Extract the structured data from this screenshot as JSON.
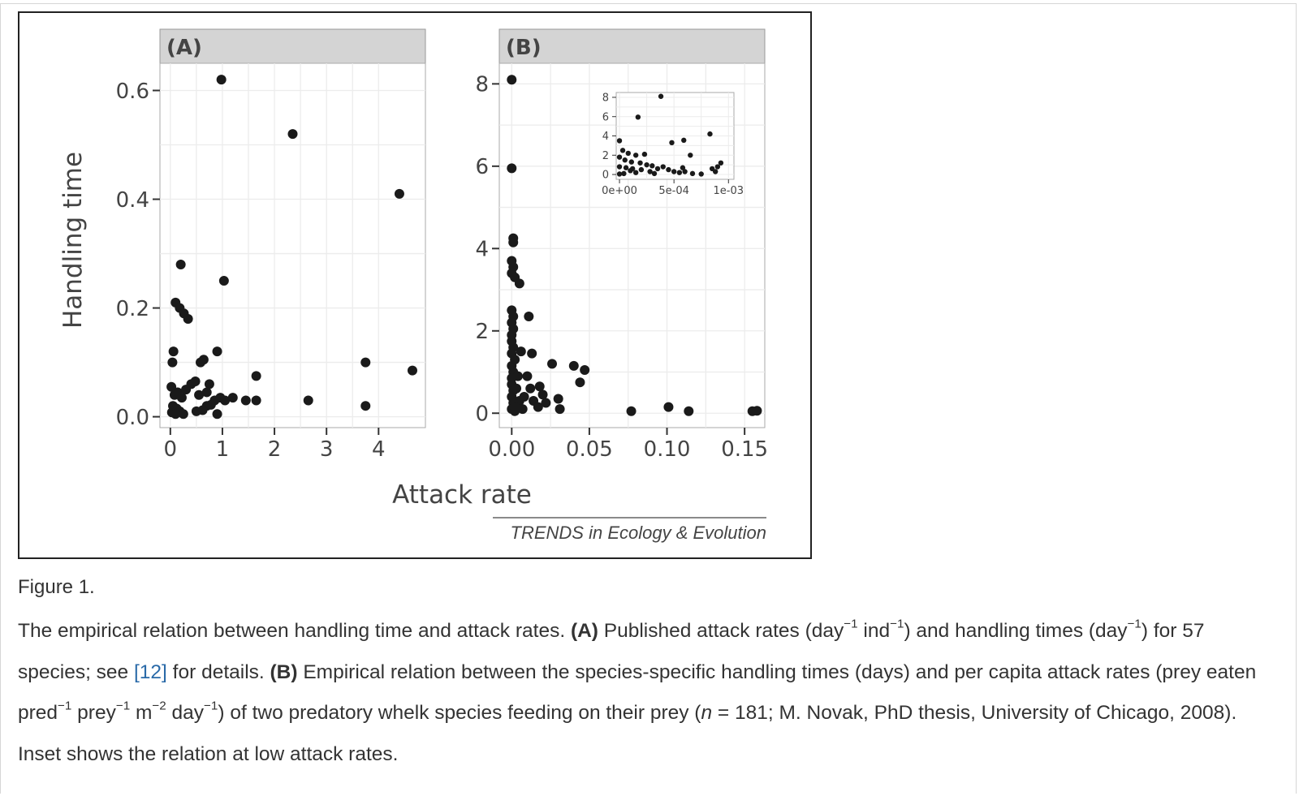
{
  "figure": {
    "label": "Figure 1.",
    "source": "TRENDS in Ecology & Evolution",
    "caption": {
      "intro": "The empirical relation between handling time and attack rates. ",
      "a_tag": "(A)",
      "a_text1": " Published attack rates (day",
      "sup1": "−1",
      "a_text2": " ind",
      "sup2": "−1",
      "a_text3": ") and handling times (day",
      "sup3": "−1",
      "a_text4": ") for 57 species; see ",
      "ref": "[12]",
      "a_text5": " for details. ",
      "b_tag": "(B)",
      "b_text1": " Empirical relation between the species-specific handling times (days) and per capita attack rates (prey eaten pred",
      "sup4": "−1",
      "b_text2": " prey",
      "sup5": "−1",
      "b_text3": " m",
      "sup6": "−2",
      "b_text4": " day",
      "sup7": "−1",
      "b_text5": ") of two predatory whelk species feeding on their prey (",
      "n_var": "n",
      "b_text6": " = 181; M. Novak, PhD thesis, University of Chicago, 2008). Inset shows the relation at low attack rates."
    }
  },
  "chart_data": [
    {
      "type": "scatter",
      "panel": "(A)",
      "xlabel": "Attack rate",
      "ylabel": "Handling time",
      "xlim": [
        -0.2,
        4.9
      ],
      "ylim": [
        -0.02,
        0.65
      ],
      "xticks": [
        0,
        1,
        2,
        3,
        4
      ],
      "xtick_labels": [
        "0",
        "1",
        "2",
        "3",
        "4"
      ],
      "yticks": [
        0,
        0.2,
        0.4,
        0.6
      ],
      "ytick_labels": [
        "0.0",
        "0.2",
        "0.4",
        "0.6"
      ],
      "points": [
        [
          0.98,
          0.62
        ],
        [
          2.35,
          0.52
        ],
        [
          4.4,
          0.41
        ],
        [
          0.2,
          0.28
        ],
        [
          1.03,
          0.25
        ],
        [
          0.1,
          0.21
        ],
        [
          0.18,
          0.2
        ],
        [
          0.26,
          0.19
        ],
        [
          0.34,
          0.18
        ],
        [
          0.04,
          0.1
        ],
        [
          0.06,
          0.12
        ],
        [
          0.58,
          0.1
        ],
        [
          0.64,
          0.105
        ],
        [
          0.9,
          0.12
        ],
        [
          3.75,
          0.1
        ],
        [
          4.65,
          0.085
        ],
        [
          1.65,
          0.075
        ],
        [
          0.02,
          0.055
        ],
        [
          0.4,
          0.06
        ],
        [
          0.48,
          0.065
        ],
        [
          0.75,
          0.06
        ],
        [
          0.08,
          0.04
        ],
        [
          0.14,
          0.045
        ],
        [
          0.22,
          0.035
        ],
        [
          0.3,
          0.05
        ],
        [
          0.55,
          0.04
        ],
        [
          0.7,
          0.045
        ],
        [
          0.85,
          0.03
        ],
        [
          0.96,
          0.035
        ],
        [
          1.05,
          0.03
        ],
        [
          1.2,
          0.035
        ],
        [
          1.45,
          0.03
        ],
        [
          1.65,
          0.03
        ],
        [
          2.65,
          0.03
        ],
        [
          0.05,
          0.02
        ],
        [
          0.12,
          0.015
        ],
        [
          0.18,
          0.01
        ],
        [
          0.25,
          0.005
        ],
        [
          0.5,
          0.01
        ],
        [
          0.7,
          0.02
        ],
        [
          0.9,
          0.005
        ],
        [
          3.75,
          0.02
        ],
        [
          0.03,
          0.008
        ],
        [
          0.1,
          0.005
        ],
        [
          0.62,
          0.012
        ],
        [
          0.78,
          0.022
        ]
      ]
    },
    {
      "type": "scatter",
      "panel": "(B)",
      "xlabel": "Attack rate",
      "ylabel": "Handling time",
      "xlim": [
        -0.008,
        0.163
      ],
      "ylim": [
        -0.35,
        8.5
      ],
      "xticks": [
        0,
        0.05,
        0.1,
        0.15
      ],
      "xtick_labels": [
        "0.00",
        "0.05",
        "0.10",
        "0.15"
      ],
      "yticks": [
        0,
        2,
        4,
        6,
        8
      ],
      "ytick_labels": [
        "0",
        "2",
        "4",
        "6",
        "8"
      ],
      "points": [
        [
          0.0,
          8.1
        ],
        [
          0.0,
          5.95
        ],
        [
          0.001,
          4.25
        ],
        [
          0.001,
          4.15
        ],
        [
          0.0,
          3.7
        ],
        [
          0.001,
          3.55
        ],
        [
          0.0,
          3.4
        ],
        [
          0.002,
          3.3
        ],
        [
          0.005,
          3.15
        ],
        [
          0.0,
          2.5
        ],
        [
          0.001,
          2.35
        ],
        [
          0.0,
          2.2
        ],
        [
          0.001,
          2.05
        ],
        [
          0.0,
          1.9
        ],
        [
          0.0,
          1.75
        ],
        [
          0.001,
          1.6
        ],
        [
          0.0,
          1.45
        ],
        [
          0.002,
          1.3
        ],
        [
          0.0,
          1.15
        ],
        [
          0.001,
          1.0
        ],
        [
          0.0,
          0.85
        ],
        [
          0.0,
          0.7
        ],
        [
          0.001,
          0.55
        ],
        [
          0.0,
          0.4
        ],
        [
          0.001,
          0.25
        ],
        [
          0.0,
          0.1
        ],
        [
          0.002,
          0.05
        ],
        [
          0.004,
          0.9
        ],
        [
          0.003,
          0.6
        ],
        [
          0.005,
          0.3
        ],
        [
          0.006,
          1.5
        ],
        [
          0.008,
          0.4
        ],
        [
          0.011,
          2.35
        ],
        [
          0.013,
          1.45
        ],
        [
          0.01,
          0.9
        ],
        [
          0.012,
          0.6
        ],
        [
          0.014,
          0.3
        ],
        [
          0.017,
          0.15
        ],
        [
          0.018,
          0.65
        ],
        [
          0.02,
          0.45
        ],
        [
          0.022,
          0.25
        ],
        [
          0.026,
          1.2
        ],
        [
          0.03,
          0.35
        ],
        [
          0.031,
          0.1
        ],
        [
          0.04,
          1.15
        ],
        [
          0.044,
          0.75
        ],
        [
          0.047,
          1.05
        ],
        [
          0.077,
          0.05
        ],
        [
          0.101,
          0.15
        ],
        [
          0.114,
          0.05
        ],
        [
          0.155,
          0.05
        ],
        [
          0.158,
          0.06
        ],
        [
          0.002,
          0.15
        ],
        [
          0.007,
          0.1
        ]
      ]
    },
    {
      "type": "scatter",
      "panel": "(B) inset",
      "xlim": [
        -3e-05,
        0.00105
      ],
      "ylim": [
        -0.5,
        8.5
      ],
      "xticks": [
        0,
        0.0005,
        0.001
      ],
      "xtick_labels": [
        "0e+00",
        "5e-04",
        "1e-03"
      ],
      "yticks": [
        0,
        2,
        4,
        6,
        8
      ],
      "ytick_labels": [
        "0",
        "2",
        "4",
        "6",
        "8"
      ],
      "points": [
        [
          0.00038,
          8.1
        ],
        [
          0.00017,
          5.95
        ],
        [
          0.00083,
          4.2
        ],
        [
          0.00059,
          3.55
        ],
        [
          0.00048,
          3.3
        ],
        [
          0.0,
          3.5
        ],
        [
          3e-05,
          2.5
        ],
        [
          8e-05,
          2.2
        ],
        [
          0.00015,
          2.0
        ],
        [
          0.00023,
          2.1
        ],
        [
          0.00065,
          2.0
        ],
        [
          0.0,
          1.8
        ],
        [
          5e-05,
          1.5
        ],
        [
          0.00011,
          1.3
        ],
        [
          0.00019,
          1.2
        ],
        [
          0.00025,
          1.0
        ],
        [
          0.0003,
          0.9
        ],
        [
          0.00035,
          0.6
        ],
        [
          0.0004,
          0.8
        ],
        [
          0.00045,
          0.5
        ],
        [
          0.0005,
          0.3
        ],
        [
          0.00055,
          0.2
        ],
        [
          0.0006,
          0.3
        ],
        [
          0.00067,
          0.1
        ],
        [
          0.00075,
          0.05
        ],
        [
          0.00085,
          0.6
        ],
        [
          0.0009,
          0.8
        ],
        [
          0.0001,
          0.4
        ],
        [
          0.00015,
          0.2
        ],
        [
          0.0,
          0.05
        ],
        [
          4e-05,
          0.1
        ],
        [
          0.0002,
          0.5
        ],
        [
          0.00028,
          0.3
        ],
        [
          0.00032,
          0.1
        ],
        [
          0.0,
          0.8
        ],
        [
          6e-05,
          0.7
        ],
        [
          0.00012,
          0.6
        ],
        [
          0.00088,
          0.3
        ],
        [
          0.00093,
          1.2
        ],
        [
          0.00058,
          0.7
        ]
      ]
    }
  ]
}
